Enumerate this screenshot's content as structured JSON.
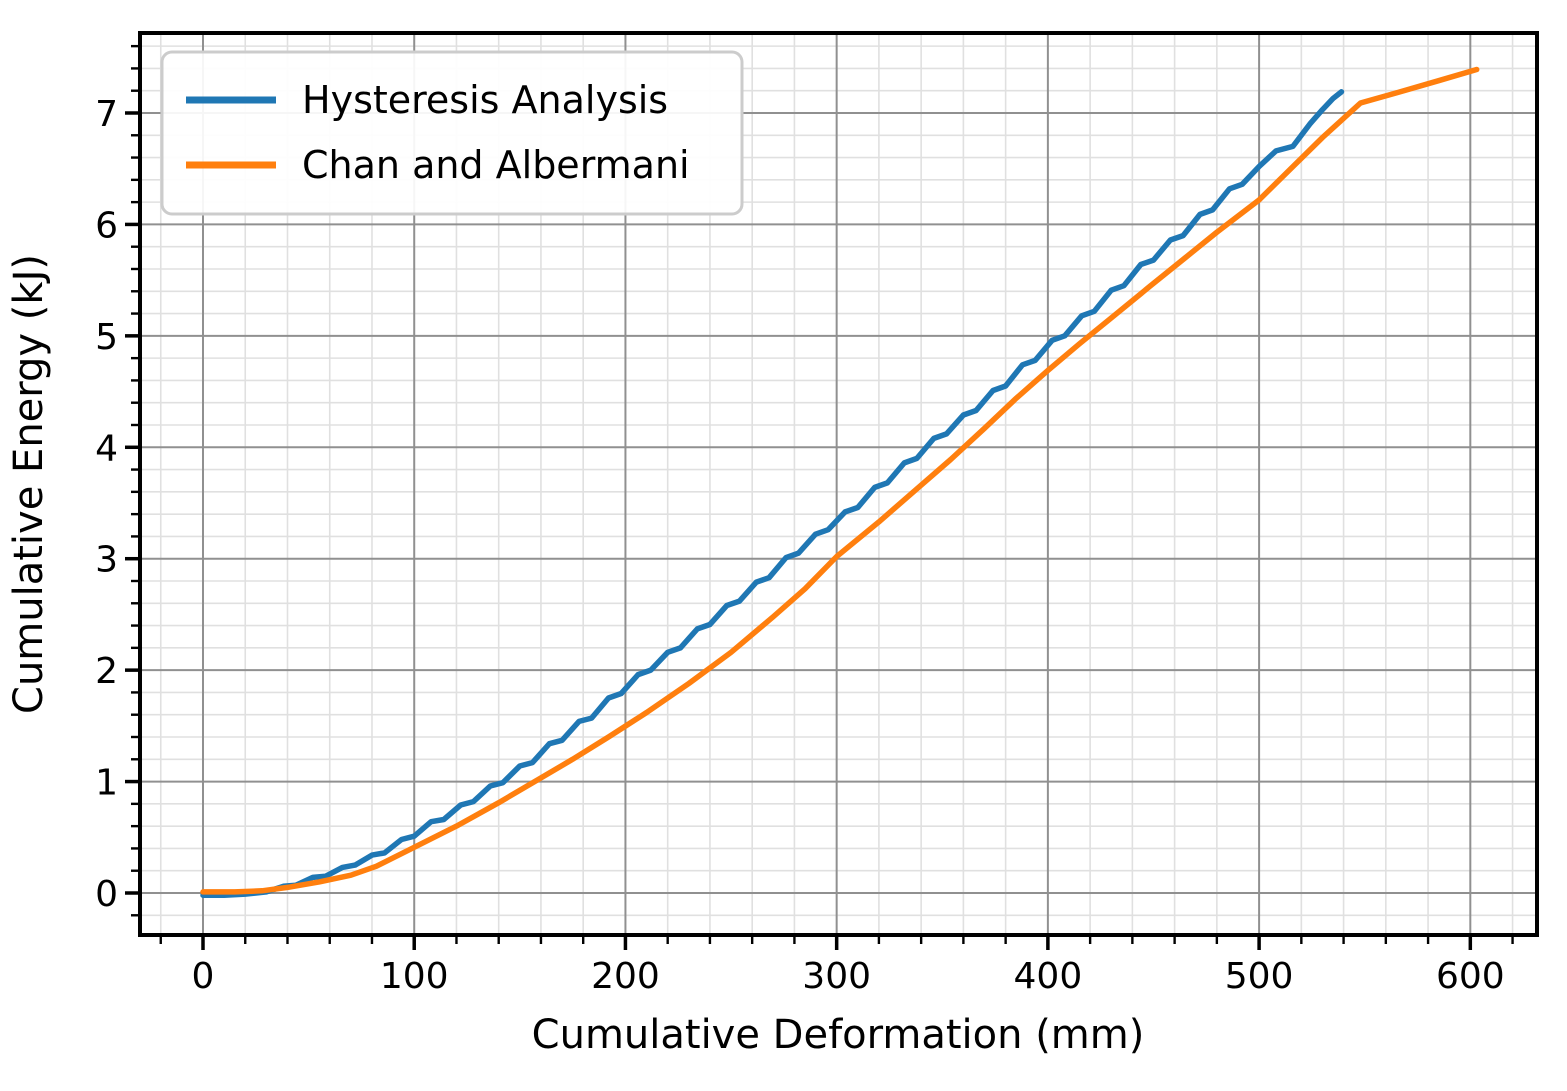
{
  "figure": {
    "background": "#ffffff",
    "plot_border_color": "#000000",
    "major_grid_color": "#909090",
    "minor_grid_color": "#e0e0e0",
    "legend_border_color": "#cccccc"
  },
  "chart_data": {
    "type": "line",
    "title": "",
    "xlabel": "Cumulative Deformation (mm)",
    "ylabel": "Cumulative Energy (kJ)",
    "xlim": [
      -29.8,
      631.6
    ],
    "ylim": [
      -0.38,
      7.72
    ],
    "xticks": [
      0,
      100,
      200,
      300,
      400,
      500,
      600
    ],
    "yticks": [
      0,
      1,
      2,
      3,
      4,
      5,
      6,
      7
    ],
    "minor_x_step": 20,
    "minor_y_step": 0.2,
    "grid": "major+minor",
    "legend_position": "upper-left",
    "series": [
      {
        "name": "Hysteresis Analysis",
        "color": "#1f77b4",
        "points": [
          [
            0,
            -0.02
          ],
          [
            10,
            -0.02
          ],
          [
            20,
            -0.01
          ],
          [
            30,
            0.01
          ],
          [
            38,
            0.06
          ],
          [
            44,
            0.07
          ],
          [
            52,
            0.14
          ],
          [
            58,
            0.15
          ],
          [
            66,
            0.23
          ],
          [
            72,
            0.25
          ],
          [
            80,
            0.34
          ],
          [
            86,
            0.36
          ],
          [
            94,
            0.48
          ],
          [
            100,
            0.51
          ],
          [
            108,
            0.64
          ],
          [
            114,
            0.66
          ],
          [
            122,
            0.79
          ],
          [
            128,
            0.82
          ],
          [
            136,
            0.96
          ],
          [
            142,
            0.99
          ],
          [
            150,
            1.14
          ],
          [
            156,
            1.17
          ],
          [
            164,
            1.34
          ],
          [
            170,
            1.37
          ],
          [
            178,
            1.54
          ],
          [
            184,
            1.57
          ],
          [
            192,
            1.75
          ],
          [
            198,
            1.79
          ],
          [
            206,
            1.96
          ],
          [
            212,
            2.0
          ],
          [
            220,
            2.16
          ],
          [
            226,
            2.2
          ],
          [
            234,
            2.37
          ],
          [
            240,
            2.41
          ],
          [
            248,
            2.58
          ],
          [
            254,
            2.62
          ],
          [
            262,
            2.79
          ],
          [
            268,
            2.83
          ],
          [
            276,
            3.01
          ],
          [
            282,
            3.05
          ],
          [
            290,
            3.22
          ],
          [
            296,
            3.26
          ],
          [
            304,
            3.42
          ],
          [
            310,
            3.46
          ],
          [
            318,
            3.64
          ],
          [
            324,
            3.68
          ],
          [
            332,
            3.86
          ],
          [
            338,
            3.9
          ],
          [
            346,
            4.08
          ],
          [
            352,
            4.12
          ],
          [
            360,
            4.29
          ],
          [
            366,
            4.33
          ],
          [
            374,
            4.51
          ],
          [
            380,
            4.55
          ],
          [
            388,
            4.74
          ],
          [
            394,
            4.78
          ],
          [
            402,
            4.96
          ],
          [
            408,
            5.0
          ],
          [
            416,
            5.18
          ],
          [
            422,
            5.22
          ],
          [
            430,
            5.41
          ],
          [
            436,
            5.45
          ],
          [
            444,
            5.64
          ],
          [
            450,
            5.68
          ],
          [
            458,
            5.86
          ],
          [
            464,
            5.9
          ],
          [
            472,
            6.09
          ],
          [
            478,
            6.13
          ],
          [
            486,
            6.32
          ],
          [
            492,
            6.36
          ],
          [
            500,
            6.52
          ],
          [
            508,
            6.66
          ],
          [
            516,
            6.7
          ],
          [
            524,
            6.9
          ],
          [
            530,
            7.03
          ],
          [
            535,
            7.13
          ],
          [
            539,
            7.19
          ]
        ]
      },
      {
        "name": "Chan and Albermani",
        "color": "#ff7f0e",
        "points": [
          [
            0,
            0.01
          ],
          [
            15,
            0.01
          ],
          [
            28,
            0.02
          ],
          [
            40,
            0.05
          ],
          [
            55,
            0.1
          ],
          [
            70,
            0.16
          ],
          [
            82,
            0.24
          ],
          [
            100,
            0.41
          ],
          [
            120,
            0.6
          ],
          [
            140,
            0.81
          ],
          [
            157,
            1.0
          ],
          [
            175,
            1.2
          ],
          [
            192,
            1.4
          ],
          [
            210,
            1.62
          ],
          [
            230,
            1.88
          ],
          [
            250,
            2.16
          ],
          [
            270,
            2.48
          ],
          [
            285,
            2.73
          ],
          [
            300,
            3.02
          ],
          [
            320,
            3.33
          ],
          [
            340,
            3.66
          ],
          [
            354,
            3.89
          ],
          [
            370,
            4.17
          ],
          [
            385,
            4.44
          ],
          [
            400,
            4.69
          ],
          [
            415,
            4.93
          ],
          [
            430,
            5.16
          ],
          [
            448,
            5.44
          ],
          [
            465,
            5.7
          ],
          [
            480,
            5.93
          ],
          [
            500,
            6.22
          ],
          [
            515,
            6.5
          ],
          [
            530,
            6.78
          ],
          [
            548,
            7.09
          ],
          [
            565,
            7.18
          ],
          [
            585,
            7.29
          ],
          [
            603,
            7.39
          ]
        ]
      }
    ]
  }
}
